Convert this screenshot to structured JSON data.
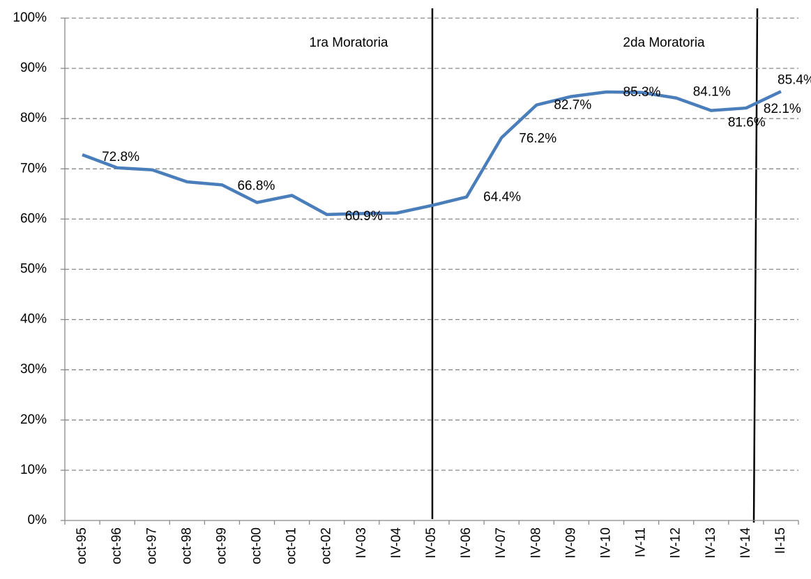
{
  "chart_data": {
    "type": "line",
    "categories": [
      "oct-95",
      "oct-96",
      "oct-97",
      "oct-98",
      "oct-99",
      "oct-00",
      "oct-01",
      "oct-02",
      "IV-03",
      "IV-04",
      "IV-05",
      "IV-06",
      "IV-07",
      "IV-08",
      "IV-09",
      "IV-10",
      "IV-11",
      "IV-12",
      "IV-13",
      "IV-14",
      "II-15"
    ],
    "series": [
      {
        "color": "#4a7ebb",
        "values": [
          72.8,
          70.2,
          69.8,
          67.4,
          66.8,
          63.3,
          64.7,
          60.9,
          61.1,
          61.2,
          62.7,
          64.4,
          76.2,
          82.7,
          84.4,
          85.3,
          85.2,
          84.1,
          81.6,
          82.1,
          85.4
        ],
        "value_labels": [
          "72.8%",
          null,
          null,
          null,
          "66.8%",
          null,
          null,
          "60.9%",
          null,
          null,
          null,
          "64.4%",
          "76.2%",
          "82.7%",
          null,
          "85.3%",
          null,
          "84.1%",
          "81.6%",
          "82.1%",
          "85.4%"
        ]
      }
    ],
    "ylim": [
      0,
      100
    ],
    "yticks": [
      {
        "value": 0,
        "label": "0%"
      },
      {
        "value": 10,
        "label": "10%"
      },
      {
        "value": 20,
        "label": "20%"
      },
      {
        "value": 30,
        "label": "30%"
      },
      {
        "value": 40,
        "label": "40%"
      },
      {
        "value": 50,
        "label": "50%"
      },
      {
        "value": 60,
        "label": "60%"
      },
      {
        "value": 70,
        "label": "70%"
      },
      {
        "value": 80,
        "label": "80%"
      },
      {
        "value": 90,
        "label": "90%"
      },
      {
        "value": 100,
        "label": "100%"
      }
    ],
    "grid": true,
    "annotations": [
      "1ra Moratoria",
      "2da Moratoria"
    ]
  }
}
